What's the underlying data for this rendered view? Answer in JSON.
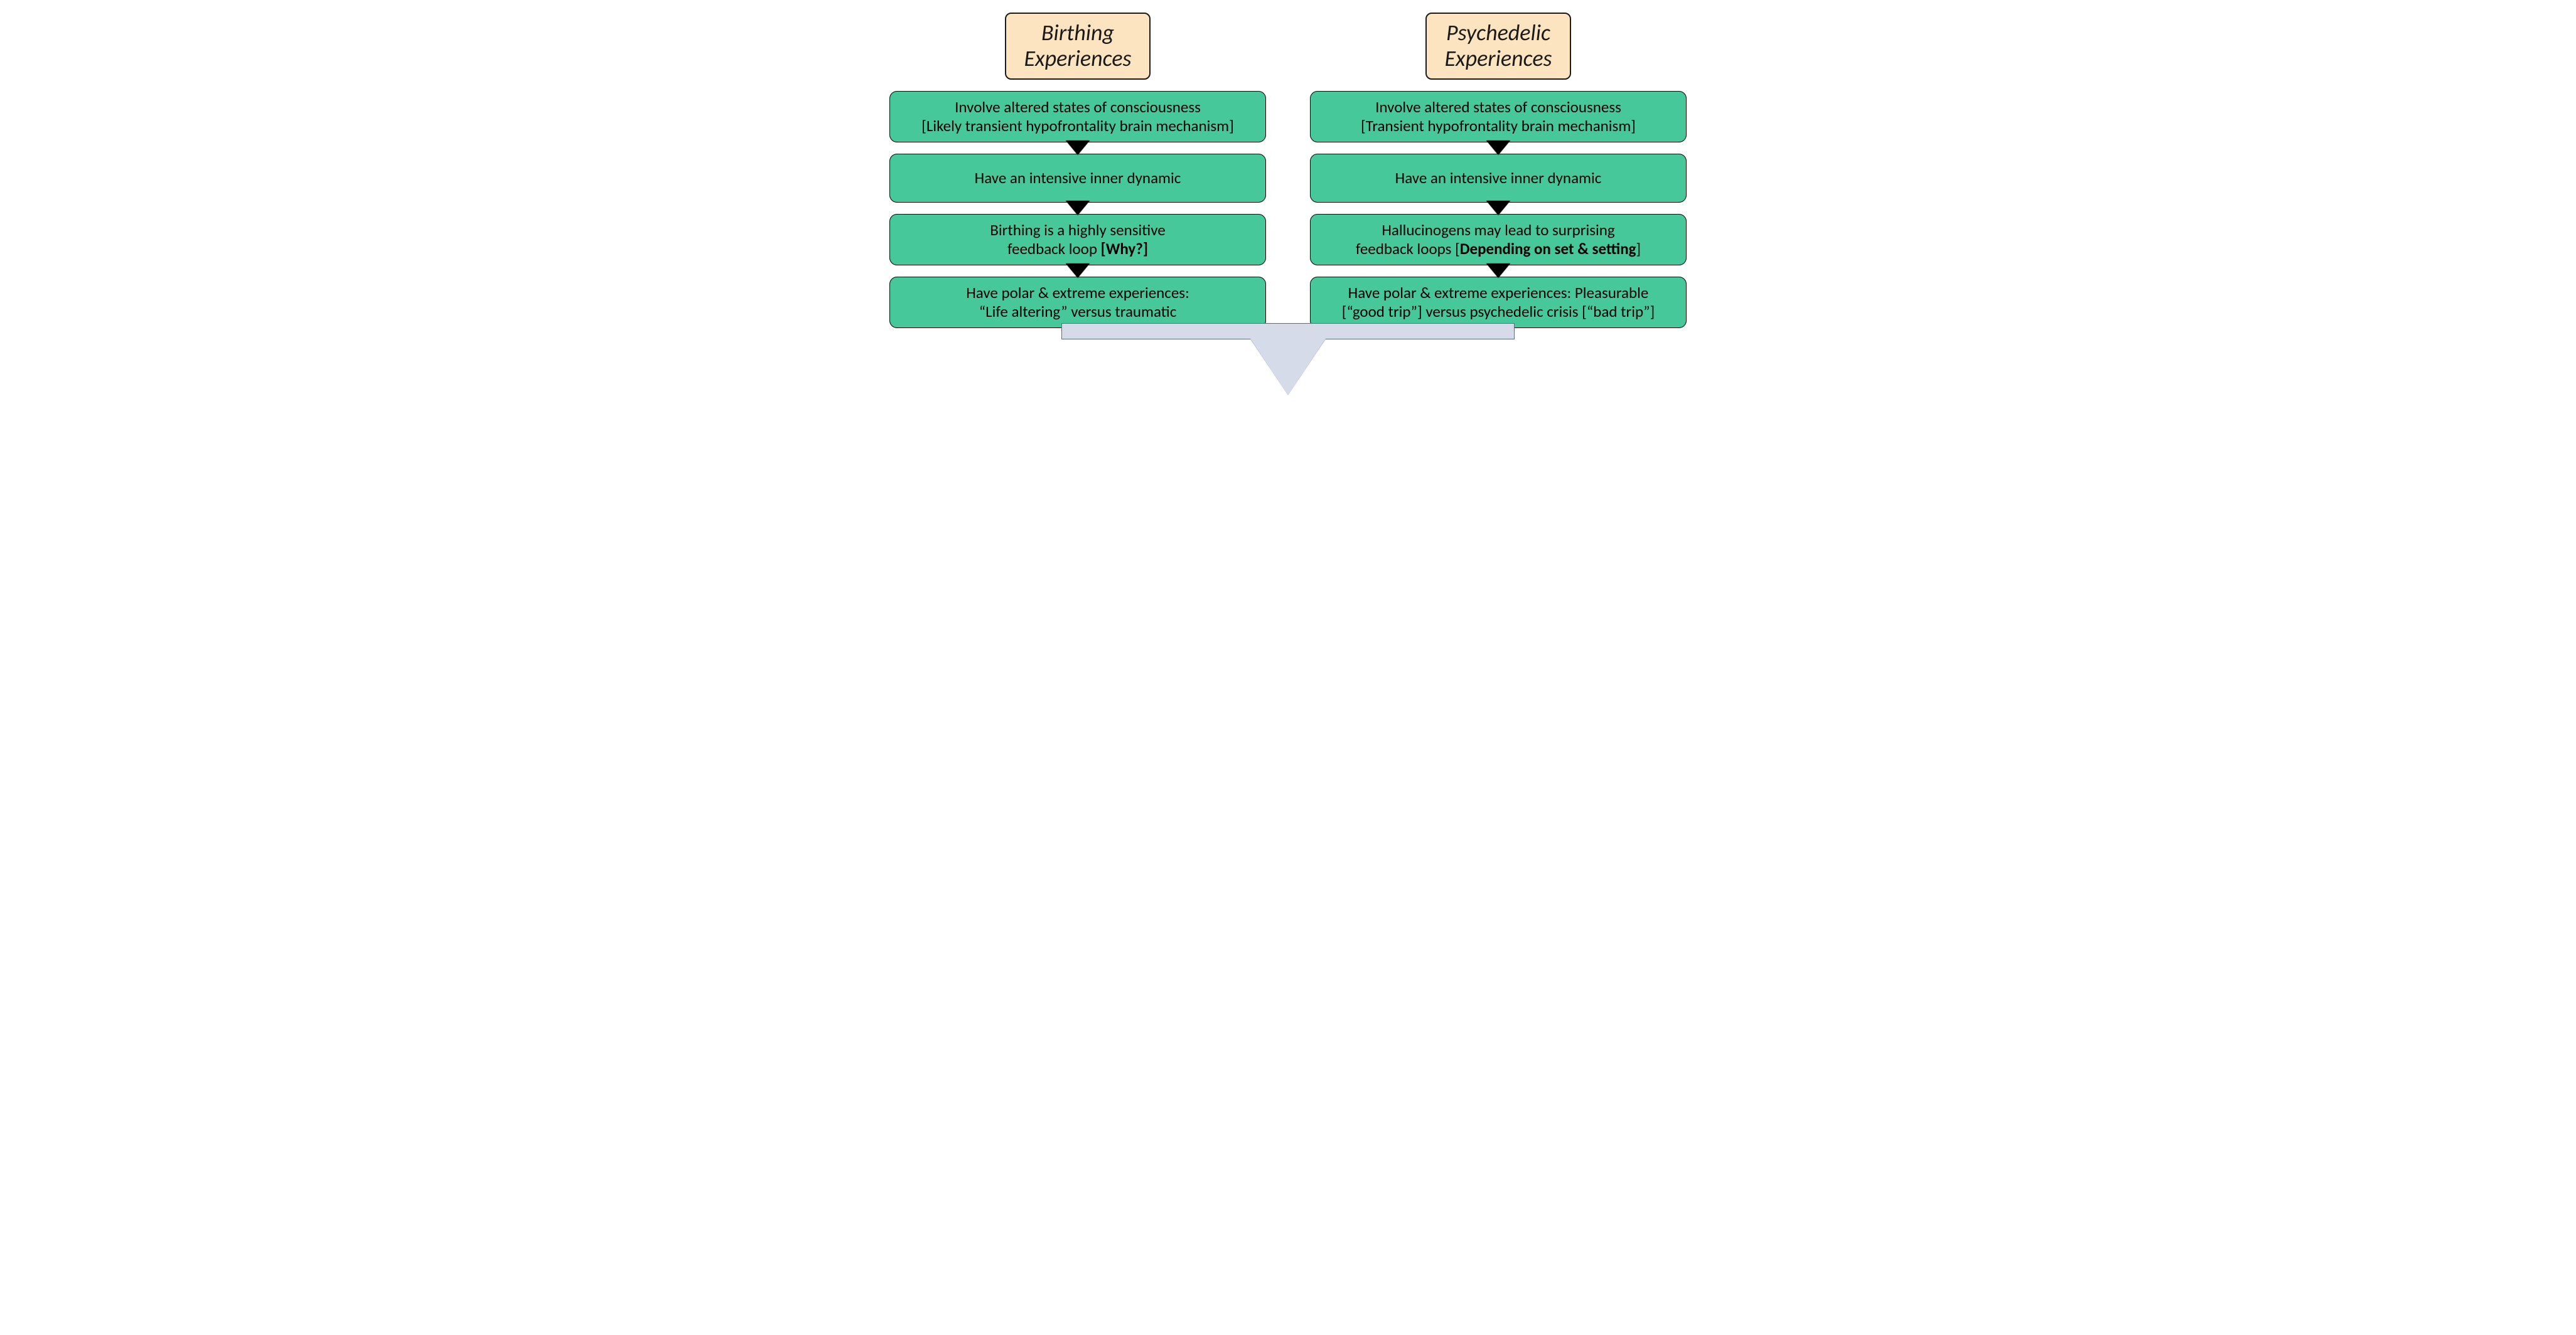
{
  "layout": {
    "type": "infographic",
    "structure": "two-column-balance-scale",
    "background_color": "#ffffff",
    "title_box": {
      "bg": "#fce4c0",
      "border": "#1a1a1a",
      "font_style": "italic",
      "font_size": 36,
      "radius": 10
    },
    "card": {
      "bg": "#47c89b",
      "border": "#000000",
      "font_size": 25,
      "radius": 12,
      "text_color": "#000000"
    },
    "arrow": {
      "fill": "#bce6d7",
      "border": "#000000",
      "direction": "down"
    },
    "balance": {
      "beam_bg": "#d5dbe8",
      "beam_border": "#5b6b8c",
      "beam_width": 720,
      "beam_height": 24,
      "fulcrum_fill": "#d5dbe8",
      "fulcrum_border": "#5b6b8c"
    }
  },
  "left": {
    "title_l1": "Birthing",
    "title_l2": "Experiences",
    "cards": [
      {
        "l1": "Involve altered states of consciousness",
        "l2": "[Likely transient hypofrontality brain mechanism]"
      },
      {
        "l1": "Have an intensive inner dynamic",
        "l2": ""
      },
      {
        "l1": "Birthing is a highly sensitive",
        "l2_pre": "feedback loop ",
        "l2_bold": "[Why?]",
        "l2_post": ""
      },
      {
        "l1": "Have polar & extreme experiences:",
        "l2": "“Life altering” versus traumatic"
      }
    ]
  },
  "right": {
    "title_l1": "Psychedelic",
    "title_l2": "Experiences",
    "cards": [
      {
        "l1": "Involve altered states of consciousness",
        "l2": "[Transient hypofrontality brain mechanism]"
      },
      {
        "l1": "Have an intensive inner dynamic",
        "l2": ""
      },
      {
        "l1": "Hallucinogens may lead to surprising",
        "l2_pre": "feedback loops [",
        "l2_bold": "Depending on set & setting",
        "l2_post": "]"
      },
      {
        "l1": "Have polar & extreme experiences: Pleasurable",
        "l2": "[“good trip”] versus psychedelic crisis [“bad trip”]"
      }
    ]
  }
}
